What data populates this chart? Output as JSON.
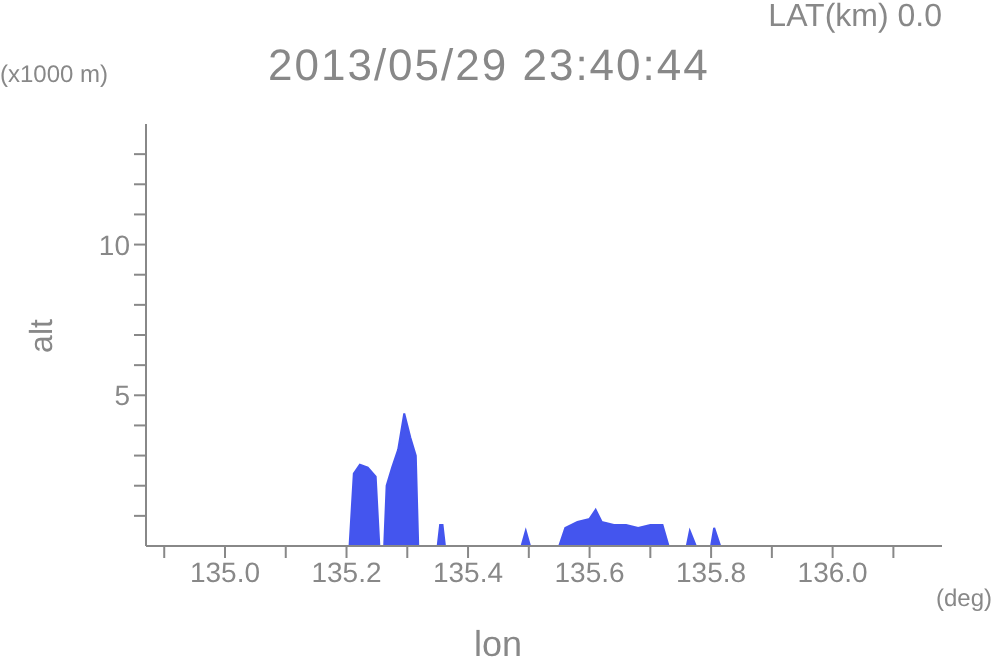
{
  "chart_data": {
    "type": "area",
    "title": "2013/05/29 23:40:44",
    "xlabel": "lon",
    "ylabel": "alt",
    "annotations": [
      "LAT(km) 0.0",
      "(x1000 m)",
      "(deg)"
    ],
    "x": [
      135.205,
      135.212,
      135.222,
      135.235,
      135.248,
      135.254,
      135.262,
      135.266,
      135.275,
      135.285,
      135.295,
      135.305,
      135.314,
      135.318,
      135.35,
      135.354,
      135.358,
      135.362,
      135.488,
      135.495,
      135.502,
      135.55,
      135.56,
      135.58,
      135.6,
      135.61,
      135.62,
      135.64,
      135.66,
      135.68,
      135.7,
      135.72,
      135.73,
      135.76,
      135.765,
      135.775,
      135.8,
      135.805,
      135.815
    ],
    "series": [
      {
        "color": "#4455ee",
        "values": [
          0,
          2.4,
          2.7,
          2.6,
          2.3,
          0,
          0,
          2.0,
          2.6,
          3.2,
          4.4,
          3.6,
          3.0,
          0,
          0,
          0.7,
          0.7,
          0,
          0,
          0.5,
          0,
          0,
          0.6,
          0.8,
          0.9,
          1.2,
          0.8,
          0.7,
          0.7,
          0.6,
          0.7,
          0.7,
          0,
          0,
          0.5,
          0,
          0,
          0.6,
          0
        ]
      }
    ],
    "xlim": [
      134.87,
      136.18
    ],
    "xticks": [
      {
        "value": 134.9,
        "label": null
      },
      {
        "value": 135,
        "label": "135.0"
      },
      {
        "value": 135.1,
        "label": null
      },
      {
        "value": 135.2,
        "label": "135.2"
      },
      {
        "value": 135.3,
        "label": null
      },
      {
        "value": 135.4,
        "label": "135.4"
      },
      {
        "value": 135.5,
        "label": null
      },
      {
        "value": 135.6,
        "label": "135.6"
      },
      {
        "value": 135.7,
        "label": null
      },
      {
        "value": 135.8,
        "label": "135.8"
      },
      {
        "value": 135.9,
        "label": null
      },
      {
        "value": 136,
        "label": "136.0"
      },
      {
        "value": 136.1,
        "label": null
      }
    ],
    "ylim": [
      0,
      14
    ],
    "yticks": [
      {
        "value": 1,
        "label": null
      },
      {
        "value": 2,
        "label": null
      },
      {
        "value": 3,
        "label": null
      },
      {
        "value": 4,
        "label": null
      },
      5,
      {
        "value": 6,
        "label": null
      },
      {
        "value": 7,
        "label": null
      },
      {
        "value": 8,
        "label": null
      },
      {
        "value": 9,
        "label": null
      },
      10,
      {
        "value": 11,
        "label": null
      },
      {
        "value": 12,
        "label": null
      },
      {
        "value": 13,
        "label": null
      }
    ],
    "grid": false,
    "legend": false
  }
}
